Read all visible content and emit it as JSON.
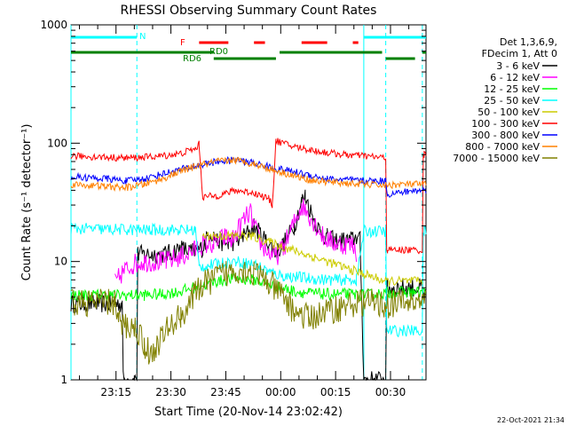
{
  "chart_data": {
    "type": "line",
    "title": "RHESSI Observing Summary Count Rates",
    "xlabel": "Start Time (20-Nov-14 23:02:42)",
    "ylabel": "Count Rate (s⁻¹ detector⁻¹)",
    "y_scale": "log",
    "ylim": [
      1,
      1000
    ],
    "xlim_minutes": [
      0,
      97
    ],
    "x_tick_labels": [
      "23:15",
      "23:30",
      "23:45",
      "00:00",
      "00:15",
      "00:30"
    ],
    "y_tick_labels": [
      "1",
      "10",
      "100",
      "1000"
    ],
    "grid": false,
    "legend_position": "right",
    "legend_header": [
      "Det 1,3,6,9,",
      "FDecim 1, Att 0"
    ],
    "footer_date": "22-Oct-2021 21:34",
    "flag_labels": {
      "n": "N",
      "f": "F",
      "rd0": "RD0",
      "rd6": "RD6"
    },
    "flags": {
      "n": {
        "color": "#00ffff",
        "segments": [
          [
            0,
            18
          ],
          [
            80,
            97
          ]
        ]
      },
      "f": {
        "color": "#ff0000",
        "segments": [
          [
            35,
            43
          ],
          [
            50,
            53
          ],
          [
            63,
            70
          ],
          [
            77,
            78.5
          ]
        ]
      },
      "rd0": {
        "color": "#008000",
        "segments": [
          [
            0,
            39
          ],
          [
            57,
            85
          ],
          [
            96,
            97
          ]
        ]
      },
      "rd6": {
        "color": "#008000",
        "segments": [
          [
            39,
            56
          ],
          [
            86,
            94
          ]
        ]
      }
    },
    "vertical_markers": {
      "solid_cyan": [
        0,
        80
      ],
      "dashed_cyan": [
        18,
        86,
        96
      ]
    },
    "series": [
      {
        "name": "3 - 6 keV",
        "color": "#000000",
        "points": [
          [
            0,
            4.4
          ],
          [
            14,
            4.4
          ],
          [
            14.5,
            1.0
          ],
          [
            18,
            1.0
          ],
          [
            18.5,
            11.5
          ],
          [
            26,
            11.5
          ],
          [
            30,
            13
          ],
          [
            33,
            12
          ],
          [
            36,
            13
          ],
          [
            38,
            18
          ],
          [
            40,
            15
          ],
          [
            43,
            14
          ],
          [
            47,
            16
          ],
          [
            50,
            20
          ],
          [
            54,
            14
          ],
          [
            56,
            12
          ],
          [
            58,
            14
          ],
          [
            61,
            20
          ],
          [
            63,
            32
          ],
          [
            64,
            36
          ],
          [
            66,
            24
          ],
          [
            68,
            18
          ],
          [
            70,
            16
          ],
          [
            72,
            15
          ],
          [
            74,
            15
          ],
          [
            76,
            15
          ],
          [
            78,
            16
          ],
          [
            79,
            15
          ],
          [
            80,
            1.0
          ],
          [
            86,
            1.0
          ],
          [
            86.5,
            6.0
          ],
          [
            96,
            6.0
          ],
          [
            96.5,
            5.0
          ],
          [
            97,
            5.0
          ]
        ]
      },
      {
        "name": "6 - 12 keV",
        "color": "#ff00ff",
        "points": [
          [
            12,
            6.5
          ],
          [
            14,
            8
          ],
          [
            17,
            9.5
          ],
          [
            20,
            10
          ],
          [
            26,
            10
          ],
          [
            30,
            11
          ],
          [
            33,
            12
          ],
          [
            36,
            14
          ],
          [
            39,
            14
          ],
          [
            42,
            16
          ],
          [
            44,
            15
          ],
          [
            47,
            22
          ],
          [
            49,
            26
          ],
          [
            50,
            20
          ],
          [
            52,
            14
          ],
          [
            54,
            12
          ],
          [
            56,
            11
          ],
          [
            58,
            13
          ],
          [
            60,
            18
          ],
          [
            62,
            25
          ],
          [
            63,
            30
          ],
          [
            65,
            25
          ],
          [
            67,
            20
          ],
          [
            69,
            16
          ],
          [
            71,
            15
          ],
          [
            73,
            14
          ],
          [
            75,
            14
          ],
          [
            77,
            14
          ],
          [
            78,
            12
          ]
        ]
      },
      {
        "name": "12 - 25 keV",
        "color": "#00ff00",
        "points": [
          [
            0,
            5.2
          ],
          [
            18,
            5.2
          ],
          [
            20,
            5.2
          ],
          [
            25,
            5.3
          ],
          [
            30,
            5.6
          ],
          [
            35,
            6.2
          ],
          [
            40,
            6.8
          ],
          [
            45,
            7.2
          ],
          [
            50,
            7.0
          ],
          [
            55,
            6.3
          ],
          [
            60,
            5.7
          ],
          [
            65,
            5.4
          ],
          [
            70,
            5.3
          ],
          [
            75,
            5.3
          ],
          [
            80,
            5.2
          ],
          [
            86,
            5.4
          ],
          [
            91,
            5.5
          ],
          [
            96,
            5.5
          ],
          [
            97,
            5.6
          ]
        ]
      },
      {
        "name": "25 - 50 keV",
        "color": "#00ffff",
        "points": [
          [
            0,
            19
          ],
          [
            18,
            18.5
          ],
          [
            25,
            18.5
          ],
          [
            30,
            18.5
          ],
          [
            34,
            18.5
          ],
          [
            35,
            9.0
          ],
          [
            40,
            9.5
          ],
          [
            45,
            10.0
          ],
          [
            50,
            9.5
          ],
          [
            55,
            8.0
          ],
          [
            58,
            7.5
          ],
          [
            60,
            7.5
          ],
          [
            65,
            7.2
          ],
          [
            70,
            7.0
          ],
          [
            78,
            7.0
          ],
          [
            80,
            18
          ],
          [
            86,
            18
          ],
          [
            86.5,
            2.6
          ],
          [
            96,
            2.6
          ],
          [
            96.5,
            18
          ],
          [
            97,
            18
          ]
        ]
      },
      {
        "name": "50 - 100 keV",
        "color": "#cccc00",
        "points": [
          [
            36,
            16.5
          ],
          [
            49,
            16.5
          ],
          [
            86,
            6.8
          ],
          [
            96,
            6.8
          ]
        ]
      },
      {
        "name": "100 - 300 keV",
        "color": "#ff0000",
        "points": [
          [
            0,
            78
          ],
          [
            10,
            76
          ],
          [
            15,
            75
          ],
          [
            20,
            76
          ],
          [
            25,
            78
          ],
          [
            30,
            82
          ],
          [
            34,
            90
          ],
          [
            35,
            98
          ],
          [
            36,
            35
          ],
          [
            40,
            36
          ],
          [
            45,
            40
          ],
          [
            50,
            38
          ],
          [
            54,
            34
          ],
          [
            55,
            30
          ],
          [
            56,
            105
          ],
          [
            60,
            95
          ],
          [
            65,
            88
          ],
          [
            70,
            83
          ],
          [
            75,
            80
          ],
          [
            80,
            78
          ],
          [
            86,
            75
          ],
          [
            86.5,
            12.5
          ],
          [
            90,
            12.5
          ],
          [
            96,
            12.5
          ],
          [
            96.5,
            80
          ],
          [
            97,
            80
          ]
        ]
      },
      {
        "name": "300 - 800 keV",
        "color": "#0000ff",
        "points": [
          [
            0,
            52
          ],
          [
            10,
            50
          ],
          [
            15,
            48
          ],
          [
            20,
            50
          ],
          [
            25,
            55
          ],
          [
            30,
            60
          ],
          [
            35,
            65
          ],
          [
            40,
            70
          ],
          [
            45,
            72
          ],
          [
            50,
            68
          ],
          [
            55,
            62
          ],
          [
            60,
            58
          ],
          [
            65,
            54
          ],
          [
            70,
            50
          ],
          [
            75,
            49
          ],
          [
            80,
            48
          ],
          [
            86,
            48
          ],
          [
            86.5,
            37
          ],
          [
            92,
            39
          ],
          [
            96,
            40
          ],
          [
            97,
            40
          ]
        ]
      },
      {
        "name": "800 - 7000 keV",
        "color": "#ff8000",
        "points": [
          [
            0,
            45
          ],
          [
            10,
            43
          ],
          [
            15,
            42
          ],
          [
            20,
            45
          ],
          [
            25,
            50
          ],
          [
            30,
            58
          ],
          [
            35,
            65
          ],
          [
            40,
            70
          ],
          [
            45,
            72
          ],
          [
            50,
            67
          ],
          [
            55,
            60
          ],
          [
            60,
            54
          ],
          [
            65,
            49
          ],
          [
            70,
            47
          ],
          [
            75,
            46
          ],
          [
            80,
            45
          ],
          [
            86,
            44
          ],
          [
            90,
            45
          ],
          [
            96,
            45
          ],
          [
            97,
            46
          ]
        ]
      },
      {
        "name": "7000 - 15000 keV",
        "color": "#808000",
        "points": [
          [
            0,
            4.5
          ],
          [
            12,
            4.5
          ],
          [
            13,
            3.0
          ],
          [
            18,
            2.7
          ],
          [
            20,
            2.0
          ],
          [
            22,
            1.6
          ],
          [
            25,
            2.4
          ],
          [
            28,
            3.0
          ],
          [
            30,
            3.5
          ],
          [
            32,
            4.2
          ],
          [
            35,
            6.0
          ],
          [
            40,
            7.5
          ],
          [
            45,
            8.5
          ],
          [
            48,
            8.5
          ],
          [
            50,
            8.0
          ],
          [
            53,
            7.0
          ],
          [
            55,
            6.2
          ],
          [
            58,
            5.0
          ],
          [
            61,
            3.8
          ],
          [
            65,
            3.3
          ],
          [
            70,
            3.8
          ],
          [
            75,
            4.2
          ],
          [
            80,
            4.6
          ],
          [
            86,
            4.3
          ],
          [
            90,
            4.5
          ],
          [
            96,
            4.5
          ],
          [
            97,
            4.6
          ]
        ]
      }
    ]
  }
}
